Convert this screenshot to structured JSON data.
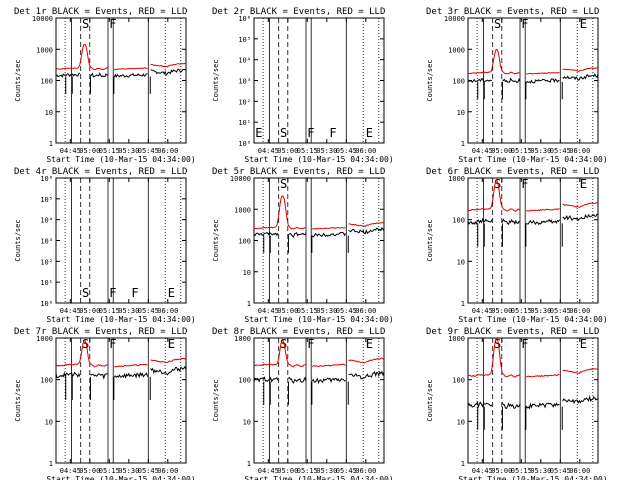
{
  "chart_data": [
    {
      "title": "Det 1r BLACK = Events, RED = LLD",
      "type": "line",
      "scale": "log",
      "yticks": [
        "1",
        "10",
        "100",
        "1000",
        "10000"
      ],
      "ylim": [
        1,
        10000
      ],
      "mode": "counts",
      "markers": [
        "S",
        "F"
      ],
      "xlabel": "Start Time (10-Mar-15 04:34:00)",
      "ylabel": "Counts/sec",
      "xticks": [
        "04:45",
        "05:00",
        "05:15",
        "05:30",
        "05:45",
        "06:00"
      ],
      "red": {
        "base": 250,
        "peak": 1500
      },
      "black": {
        "base": 150
      }
    },
    {
      "title": "Det 2r BLACK = Events, RED = LLD",
      "type": "line",
      "scale": "log",
      "yticks": [
        "10⁰",
        "10¹",
        "10²",
        "10³",
        "10⁴",
        "10⁵",
        "10⁶"
      ],
      "ylim": [
        1,
        1000000
      ],
      "mode": "empty",
      "markers": [
        "E",
        "S",
        "F",
        "F",
        "E"
      ],
      "xlabel": "Start Time (10-Mar-15 04:34:00)",
      "ylabel": "Counts/sec",
      "xticks": [
        "04:45",
        "05:00",
        "05:15",
        "05:30",
        "05:45",
        "06:00"
      ]
    },
    {
      "title": "Det 3r BLACK = Events, RED = LLD",
      "type": "line",
      "scale": "log",
      "yticks": [
        "1",
        "10",
        "100",
        "1000",
        "10000"
      ],
      "ylim": [
        1,
        10000
      ],
      "mode": "counts",
      "markers": [
        "E",
        "S",
        "F",
        "E"
      ],
      "xlabel": "Start Time (10-Mar-15 04:34:00)",
      "ylabel": "Counts/sec",
      "xticks": [
        "04:45",
        "05:00",
        "05:15",
        "05:30",
        "05:45",
        "06:00"
      ],
      "red": {
        "base": 180,
        "peak": 1000
      },
      "black": {
        "base": 100
      }
    },
    {
      "title": "Det 4r BLACK = Events, RED = LLD",
      "type": "line",
      "scale": "log",
      "yticks": [
        "10⁰",
        "10¹",
        "10²",
        "10³",
        "10⁴",
        "10⁵",
        "10⁶"
      ],
      "ylim": [
        1,
        1000000
      ],
      "mode": "empty",
      "markers": [
        "S",
        "F",
        "F",
        "E"
      ],
      "xlabel": "Start Time (10-Mar-15 04:34:00)",
      "ylabel": "Counts/sec",
      "xticks": [
        "04:45",
        "05:00",
        "05:15",
        "05:30",
        "05:45",
        "06:00"
      ]
    },
    {
      "title": "Det 5r BLACK = Events, RED = LLD",
      "type": "line",
      "scale": "log",
      "yticks": [
        "1",
        "10",
        "100",
        "1000",
        "10000"
      ],
      "ylim": [
        1,
        10000
      ],
      "mode": "counts",
      "markers": [
        "S"
      ],
      "xlabel": "Start Time (10-Mar-15 04:34:00)",
      "ylabel": "Counts/sec",
      "xticks": [
        "04:45",
        "05:00",
        "05:15",
        "05:30",
        "05:45",
        "06:00"
      ],
      "red": {
        "base": 260,
        "peak": 2800
      },
      "black": {
        "base": 160
      }
    },
    {
      "title": "Det 6r BLACK = Events, RED = LLD",
      "type": "line",
      "scale": "log",
      "yticks": [
        "1",
        "10",
        "100",
        "1000"
      ],
      "ylim": [
        1,
        1000
      ],
      "mode": "counts",
      "markers": [
        "E",
        "S",
        "F",
        "E"
      ],
      "xlabel": "Start Time (10-Mar-15 04:34:00)",
      "ylabel": "Counts/sec",
      "xticks": [
        "04:45",
        "05:00",
        "05:15",
        "05:30",
        "05:45",
        "06:00"
      ],
      "red": {
        "base": 180,
        "peak": 900
      },
      "black": {
        "base": 90
      }
    },
    {
      "title": "Det 7r BLACK = Events, RED = LLD",
      "type": "line",
      "scale": "log",
      "yticks": [
        "1",
        "10",
        "100",
        "1000"
      ],
      "ylim": [
        1,
        1000
      ],
      "mode": "counts",
      "markers": [
        "E",
        "S",
        "F",
        "E"
      ],
      "xlabel": "Start Time (10-Mar-15 04:34:00)",
      "ylabel": "Counts/sec",
      "xticks": [
        "04:45",
        "05:00",
        "05:15",
        "05:30",
        "05:45",
        "06:00"
      ],
      "red": {
        "base": 230,
        "peak": 900
      },
      "black": {
        "base": 130
      }
    },
    {
      "title": "Det 8r BLACK = Events, RED = LLD",
      "type": "line",
      "scale": "log",
      "yticks": [
        "1",
        "10",
        "100",
        "1000"
      ],
      "ylim": [
        1,
        1000
      ],
      "mode": "counts",
      "markers": [
        "E",
        "S",
        "F",
        "E"
      ],
      "xlabel": "Start Time (10-Mar-15 04:34:00)",
      "ylabel": "Counts/sec",
      "xticks": [
        "04:45",
        "05:00",
        "05:15",
        "05:30",
        "05:45",
        "06:00"
      ],
      "red": {
        "base": 230,
        "peak": 900
      },
      "black": {
        "base": 100
      }
    },
    {
      "title": "Det 9r BLACK = Events, RED = LLD",
      "type": "line",
      "scale": "log",
      "yticks": [
        "1",
        "10",
        "100",
        "1000"
      ],
      "ylim": [
        1,
        1000
      ],
      "mode": "counts",
      "markers": [
        "S",
        "F",
        "E"
      ],
      "xlabel": "Start Time (10-Mar-15 04:34:00)",
      "ylabel": "Counts/sec",
      "xticks": [
        "04:45",
        "05:00",
        "05:15",
        "05:30",
        "05:45",
        "06:00"
      ],
      "red": {
        "base": 130,
        "peak": 1000
      },
      "black": {
        "base": 25
      }
    }
  ]
}
